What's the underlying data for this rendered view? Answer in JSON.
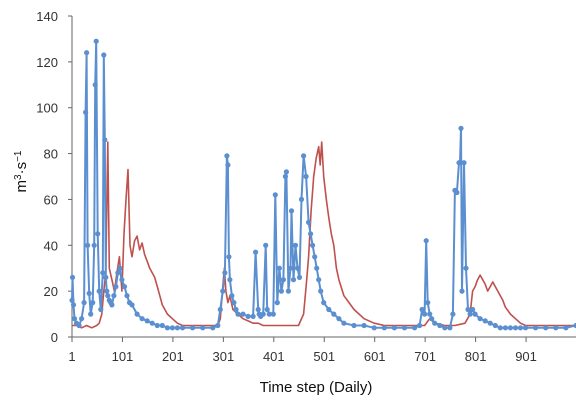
{
  "chart_data": {
    "type": "line",
    "title": "",
    "xlabel": "Time step (Daily)",
    "ylabel_base": "m",
    "ylabel_sup1": "3",
    "ylabel_mid": "·s",
    "ylabel_sup2": "−1",
    "xlim": [
      1,
      1000
    ],
    "ylim": [
      0,
      140
    ],
    "x_ticks": [
      1,
      101,
      201,
      301,
      401,
      501,
      601,
      701,
      801,
      901
    ],
    "x_tick_labels": [
      "1",
      "101",
      "201",
      "301",
      "401",
      "501",
      "601",
      "701",
      "801",
      "901"
    ],
    "y_ticks": [
      0,
      20,
      40,
      60,
      80,
      100,
      120,
      140
    ],
    "y_tick_labels": [
      "0",
      "20",
      "40",
      "60",
      "80",
      "100",
      "120",
      "140"
    ],
    "grid": false,
    "legend": "none",
    "colors": {
      "blue": "#5b8fd0",
      "red": "#c0504d"
    },
    "series": [
      {
        "color_key": "red",
        "marker": "none",
        "x": [
          1,
          10,
          20,
          30,
          40,
          50,
          55,
          60,
          64,
          68,
          72,
          75,
          80,
          85,
          90,
          95,
          100,
          104,
          108,
          112,
          116,
          120,
          125,
          130,
          135,
          140,
          145,
          150,
          155,
          160,
          165,
          170,
          175,
          180,
          190,
          200,
          210,
          220,
          230,
          240,
          250,
          260,
          270,
          280,
          290,
          295,
          300,
          303,
          306,
          310,
          314,
          320,
          330,
          340,
          350,
          360,
          370,
          380,
          390,
          400,
          410,
          420,
          430,
          440,
          450,
          460,
          465,
          470,
          475,
          480,
          485,
          490,
          493,
          496,
          500,
          505,
          510,
          515,
          520,
          525,
          530,
          540,
          550,
          560,
          570,
          580,
          600,
          620,
          640,
          650,
          660,
          680,
          700,
          710,
          720,
          740,
          760,
          780,
          790,
          795,
          800,
          805,
          810,
          815,
          820,
          825,
          830,
          835,
          840,
          845,
          850,
          855,
          860,
          870,
          880,
          890,
          900,
          920,
          940,
          960,
          980,
          1000
        ],
        "y": [
          5,
          5,
          4,
          5,
          4,
          5,
          6,
          10,
          20,
          28,
          85,
          30,
          25,
          20,
          28,
          35,
          20,
          45,
          60,
          73,
          40,
          35,
          42,
          44,
          38,
          41,
          36,
          33,
          30,
          28,
          26,
          22,
          18,
          14,
          10,
          8,
          6,
          5,
          5,
          5,
          5,
          5,
          5,
          5,
          5,
          8,
          22,
          30,
          20,
          15,
          18,
          12,
          10,
          8,
          7,
          6,
          6,
          5,
          5,
          5,
          5,
          5,
          5,
          5,
          5,
          10,
          22,
          35,
          55,
          70,
          78,
          83,
          75,
          85,
          70,
          60,
          52,
          45,
          40,
          30,
          25,
          18,
          15,
          12,
          10,
          8,
          6,
          5,
          5,
          5,
          5,
          5,
          5,
          8,
          6,
          5,
          5,
          6,
          10,
          20,
          22,
          25,
          27,
          25,
          23,
          20,
          22,
          24,
          22,
          20,
          18,
          16,
          13,
          10,
          8,
          6,
          5,
          5,
          5,
          5,
          5,
          5
        ]
      },
      {
        "color_key": "blue",
        "marker": "circle",
        "x": [
          1,
          2,
          4,
          6,
          10,
          15,
          20,
          25,
          28,
          30,
          32,
          35,
          38,
          42,
          45,
          47,
          49,
          52,
          55,
          58,
          62,
          64,
          66,
          68,
          70,
          72,
          75,
          78,
          80,
          84,
          88,
          92,
          96,
          100,
          105,
          110,
          115,
          120,
          130,
          140,
          150,
          160,
          170,
          180,
          190,
          200,
          210,
          220,
          240,
          260,
          280,
          290,
          295,
          300,
          304,
          308,
          310,
          312,
          314,
          318,
          322,
          326,
          330,
          340,
          350,
          360,
          365,
          370,
          372,
          375,
          380,
          385,
          388,
          392,
          400,
          404,
          408,
          412,
          416,
          420,
          424,
          426,
          430,
          434,
          436,
          440,
          444,
          448,
          452,
          456,
          460,
          465,
          470,
          474,
          478,
          482,
          486,
          490,
          494,
          500,
          510,
          520,
          530,
          540,
          560,
          580,
          600,
          620,
          640,
          660,
          680,
          690,
          695,
          700,
          703,
          706,
          710,
          714,
          720,
          730,
          740,
          750,
          756,
          760,
          764,
          768,
          770,
          772,
          774,
          778,
          782,
          786,
          790,
          795,
          800,
          810,
          820,
          830,
          840,
          850,
          860,
          870,
          880,
          890,
          900,
          920,
          940,
          960,
          980,
          1000
        ],
        "y": [
          16,
          26,
          14,
          8,
          6,
          5,
          8,
          15,
          98,
          124,
          40,
          19,
          10,
          15,
          40,
          110,
          129,
          45,
          20,
          12,
          28,
          123,
          86,
          26,
          20,
          18,
          16,
          15,
          14,
          18,
          22,
          28,
          30,
          25,
          22,
          18,
          15,
          14,
          10,
          8,
          7,
          6,
          5,
          5,
          4,
          4,
          4,
          4,
          4,
          4,
          4,
          5,
          12,
          20,
          28,
          79,
          75,
          35,
          25,
          18,
          15,
          12,
          10,
          10,
          9,
          9,
          37,
          12,
          10,
          9,
          10,
          40,
          12,
          10,
          10,
          62,
          15,
          30,
          20,
          25,
          70,
          72,
          20,
          30,
          55,
          25,
          40,
          30,
          26,
          60,
          79,
          70,
          50,
          45,
          40,
          35,
          30,
          25,
          20,
          15,
          12,
          10,
          8,
          6,
          5,
          5,
          4,
          4,
          4,
          4,
          4,
          5,
          12,
          10,
          42,
          15,
          10,
          8,
          6,
          5,
          4,
          4,
          10,
          64,
          63,
          76,
          76,
          91,
          20,
          76,
          30,
          12,
          10,
          12,
          10,
          8,
          7,
          6,
          5,
          4,
          4,
          4,
          4,
          4,
          4,
          4,
          4,
          4,
          4,
          5
        ]
      }
    ]
  }
}
